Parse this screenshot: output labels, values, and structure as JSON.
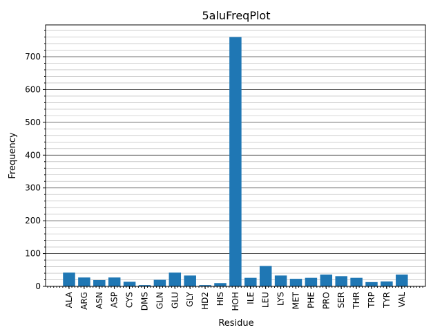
{
  "chart_data": {
    "type": "bar",
    "title": "5aluFreqPlot",
    "xlabel": "Residue",
    "ylabel": "Frequency",
    "categories": [
      "ALA",
      "ARG",
      "ASN",
      "ASP",
      "CYS",
      "DMS",
      "GLN",
      "GLU",
      "GLY",
      "HD2",
      "HIS",
      "HOH",
      "ILE",
      "LEU",
      "LYS",
      "MET",
      "PHE",
      "PRO",
      "SER",
      "THR",
      "TRP",
      "TYR",
      "VAL"
    ],
    "values": [
      42,
      27,
      19,
      27,
      14,
      4,
      20,
      42,
      33,
      4,
      10,
      760,
      26,
      62,
      33,
      23,
      26,
      36,
      31,
      26,
      13,
      15,
      36
    ],
    "ylim": [
      0,
      797
    ],
    "yticks": [
      0,
      100,
      200,
      300,
      400,
      500,
      600,
      700
    ],
    "minor_step": 20,
    "bar_color": "#1f77b4",
    "grid": true
  }
}
